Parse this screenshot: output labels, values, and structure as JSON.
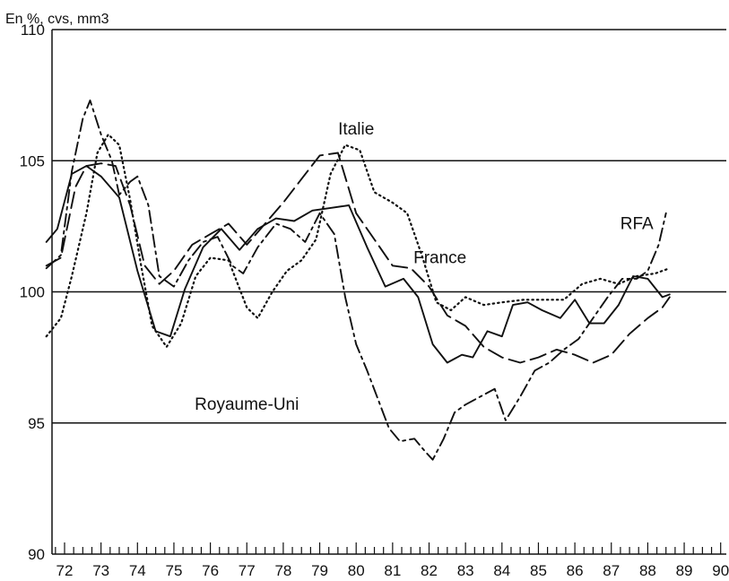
{
  "chart_data": {
    "type": "line",
    "unit_label": "En %, cvs, mm3",
    "xlim": [
      1972,
      1990
    ],
    "ylim": [
      90,
      110
    ],
    "x_ticks": [
      "72",
      "73",
      "74",
      "75",
      "76",
      "77",
      "78",
      "79",
      "80",
      "81",
      "82",
      "83",
      "84",
      "85",
      "86",
      "87",
      "88",
      "89",
      "90"
    ],
    "y_ticks": [
      90,
      95,
      100,
      105,
      110
    ],
    "reference_lines": [
      95,
      100,
      105
    ],
    "series": [
      {
        "name": "France",
        "style": "solid",
        "color": "#111111",
        "points": [
          [
            1971.5,
            101.9
          ],
          [
            1971.8,
            102.4
          ],
          [
            1972.2,
            104.5
          ],
          [
            1972.6,
            104.8
          ],
          [
            1973.0,
            104.4
          ],
          [
            1973.5,
            103.6
          ],
          [
            1974.0,
            100.8
          ],
          [
            1974.5,
            98.5
          ],
          [
            1974.9,
            98.3
          ],
          [
            1975.3,
            100.1
          ],
          [
            1975.8,
            101.7
          ],
          [
            1976.3,
            102.4
          ],
          [
            1976.8,
            101.6
          ],
          [
            1977.3,
            102.4
          ],
          [
            1977.8,
            102.8
          ],
          [
            1978.3,
            102.7
          ],
          [
            1978.8,
            103.1
          ],
          [
            1979.3,
            103.2
          ],
          [
            1979.8,
            103.3
          ],
          [
            1980.3,
            101.7
          ],
          [
            1980.8,
            100.2
          ],
          [
            1981.3,
            100.5
          ],
          [
            1981.7,
            99.8
          ],
          [
            1982.1,
            98.0
          ],
          [
            1982.5,
            97.3
          ],
          [
            1982.9,
            97.6
          ],
          [
            1983.2,
            97.5
          ],
          [
            1983.6,
            98.5
          ],
          [
            1984.0,
            98.3
          ],
          [
            1984.3,
            99.5
          ],
          [
            1984.7,
            99.6
          ],
          [
            1985.1,
            99.3
          ],
          [
            1985.6,
            99.0
          ],
          [
            1986.0,
            99.7
          ],
          [
            1986.4,
            98.8
          ],
          [
            1986.8,
            98.8
          ],
          [
            1987.2,
            99.5
          ],
          [
            1987.6,
            100.6
          ],
          [
            1988.0,
            100.5
          ],
          [
            1988.4,
            99.8
          ],
          [
            1988.6,
            99.9
          ]
        ]
      },
      {
        "name": "RFA",
        "style": "long-dash",
        "color": "#111111",
        "points": [
          [
            1971.5,
            101.0
          ],
          [
            1971.9,
            101.3
          ],
          [
            1972.3,
            104.0
          ],
          [
            1972.6,
            104.8
          ],
          [
            1973.0,
            104.9
          ],
          [
            1973.4,
            104.8
          ],
          [
            1973.8,
            103.3
          ],
          [
            1974.2,
            101.0
          ],
          [
            1974.6,
            100.3
          ],
          [
            1975.0,
            100.8
          ],
          [
            1975.5,
            101.8
          ],
          [
            1976.0,
            102.2
          ],
          [
            1976.5,
            102.6
          ],
          [
            1977.0,
            101.8
          ],
          [
            1977.5,
            102.6
          ],
          [
            1978.0,
            103.4
          ],
          [
            1978.5,
            104.3
          ],
          [
            1979.0,
            105.2
          ],
          [
            1979.5,
            105.3
          ],
          [
            1980.0,
            103.0
          ],
          [
            1980.5,
            102.0
          ],
          [
            1981.0,
            101.0
          ],
          [
            1981.5,
            100.9
          ],
          [
            1982.0,
            100.2
          ],
          [
            1982.5,
            99.1
          ],
          [
            1983.0,
            98.7
          ],
          [
            1983.5,
            97.9
          ],
          [
            1984.0,
            97.5
          ],
          [
            1984.5,
            97.3
          ],
          [
            1985.0,
            97.5
          ],
          [
            1985.5,
            97.8
          ],
          [
            1986.0,
            97.6
          ],
          [
            1986.5,
            97.3
          ],
          [
            1987.0,
            97.6
          ],
          [
            1987.5,
            98.4
          ],
          [
            1988.0,
            99.0
          ],
          [
            1988.4,
            99.4
          ],
          [
            1988.6,
            99.8
          ]
        ]
      },
      {
        "name": "Italie",
        "style": "dotted",
        "color": "#111111",
        "points": [
          [
            1971.5,
            98.3
          ],
          [
            1971.9,
            99.0
          ],
          [
            1972.2,
            100.6
          ],
          [
            1972.6,
            103.0
          ],
          [
            1972.9,
            105.3
          ],
          [
            1973.2,
            106.0
          ],
          [
            1973.5,
            105.6
          ],
          [
            1973.8,
            103.5
          ],
          [
            1974.1,
            101.0
          ],
          [
            1974.4,
            98.7
          ],
          [
            1974.8,
            97.9
          ],
          [
            1975.2,
            98.8
          ],
          [
            1975.6,
            100.6
          ],
          [
            1976.0,
            101.3
          ],
          [
            1976.5,
            101.2
          ],
          [
            1977.0,
            99.4
          ],
          [
            1977.3,
            99.0
          ],
          [
            1977.7,
            100.0
          ],
          [
            1978.1,
            100.8
          ],
          [
            1978.5,
            101.2
          ],
          [
            1978.9,
            102.0
          ],
          [
            1979.3,
            104.5
          ],
          [
            1979.7,
            105.6
          ],
          [
            1980.1,
            105.4
          ],
          [
            1980.5,
            103.8
          ],
          [
            1981.0,
            103.4
          ],
          [
            1981.4,
            103.0
          ],
          [
            1981.8,
            101.4
          ],
          [
            1982.2,
            99.6
          ],
          [
            1982.6,
            99.3
          ],
          [
            1983.0,
            99.8
          ],
          [
            1983.5,
            99.5
          ],
          [
            1984.0,
            99.6
          ],
          [
            1984.6,
            99.7
          ],
          [
            1985.1,
            99.7
          ],
          [
            1985.7,
            99.7
          ],
          [
            1986.2,
            100.3
          ],
          [
            1986.7,
            100.5
          ],
          [
            1987.2,
            100.3
          ],
          [
            1987.7,
            100.6
          ],
          [
            1988.2,
            100.7
          ],
          [
            1988.6,
            100.9
          ]
        ]
      },
      {
        "name": "Royaume-Uni",
        "style": "dash-dot",
        "color": "#111111",
        "points": [
          [
            1971.5,
            100.9
          ],
          [
            1971.9,
            101.4
          ],
          [
            1972.2,
            104.6
          ],
          [
            1972.5,
            106.6
          ],
          [
            1972.7,
            107.3
          ],
          [
            1973.0,
            106.0
          ],
          [
            1973.3,
            105.0
          ],
          [
            1973.5,
            103.7
          ],
          [
            1973.8,
            104.2
          ],
          [
            1974.0,
            104.4
          ],
          [
            1974.3,
            103.3
          ],
          [
            1974.6,
            100.6
          ],
          [
            1975.0,
            100.2
          ],
          [
            1975.4,
            101.2
          ],
          [
            1975.8,
            101.9
          ],
          [
            1976.2,
            102.1
          ],
          [
            1976.6,
            101.0
          ],
          [
            1976.9,
            100.7
          ],
          [
            1977.3,
            101.7
          ],
          [
            1977.8,
            102.6
          ],
          [
            1978.2,
            102.4
          ],
          [
            1978.6,
            101.9
          ],
          [
            1979.0,
            103.0
          ],
          [
            1979.4,
            102.2
          ],
          [
            1979.7,
            99.8
          ],
          [
            1980.0,
            98.0
          ],
          [
            1980.3,
            97.0
          ],
          [
            1980.6,
            95.9
          ],
          [
            1980.9,
            94.8
          ],
          [
            1981.2,
            94.3
          ],
          [
            1981.6,
            94.4
          ],
          [
            1981.9,
            93.9
          ],
          [
            1982.1,
            93.6
          ],
          [
            1982.4,
            94.4
          ],
          [
            1982.7,
            95.4
          ],
          [
            1983.0,
            95.7
          ],
          [
            1983.4,
            96.0
          ],
          [
            1983.8,
            96.3
          ],
          [
            1984.1,
            95.1
          ],
          [
            1984.5,
            96.0
          ],
          [
            1984.9,
            97.0
          ],
          [
            1985.3,
            97.3
          ],
          [
            1985.7,
            97.8
          ],
          [
            1986.1,
            98.2
          ],
          [
            1986.5,
            99.0
          ],
          [
            1986.9,
            99.8
          ],
          [
            1987.3,
            100.5
          ],
          [
            1987.7,
            100.5
          ],
          [
            1988.0,
            100.8
          ],
          [
            1988.3,
            101.8
          ],
          [
            1988.5,
            103.0
          ]
        ]
      }
    ],
    "annotations": [
      {
        "text": "Italie",
        "x": 1980.0,
        "y": 106.0
      },
      {
        "text": "RFA",
        "x": 1987.7,
        "y": 102.4
      },
      {
        "text": "France",
        "x": 1982.3,
        "y": 101.1
      },
      {
        "text": "Royaume-Uni",
        "x": 1977.0,
        "y": 95.5
      }
    ],
    "legend": "none",
    "grid": false
  }
}
